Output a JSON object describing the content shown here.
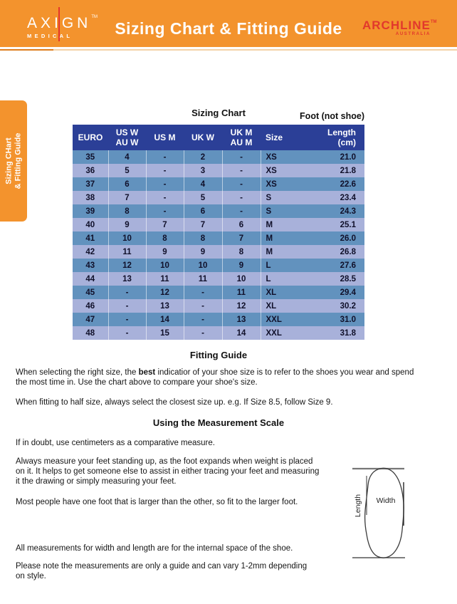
{
  "colors": {
    "orange": "#F3932D",
    "brand_red": "#E2382C",
    "table_header_bg": "#2B3F97",
    "row_odd": "#6292BE",
    "row_even": "#A8B1DA"
  },
  "header": {
    "title": "Sizing Chart & Fitting Guide",
    "axign": {
      "name": "AXIGN",
      "tm": "TM",
      "sub": "MEDICAL"
    },
    "archline": {
      "name": "ARCHLINE",
      "tm": "TM",
      "sub": "AUSTRALIA"
    }
  },
  "side_tab": {
    "line1": "Sizing CHart",
    "line2": "& Fitting Guide"
  },
  "sizing_chart": {
    "title": "Sizing Chart",
    "foot_note": "Foot (not shoe)",
    "columns": [
      {
        "line1": "EURO",
        "line2": ""
      },
      {
        "line1": "US W",
        "line2": "AU W"
      },
      {
        "line1": "US M",
        "line2": ""
      },
      {
        "line1": "UK W",
        "line2": ""
      },
      {
        "line1": "UK M",
        "line2": "AU M"
      },
      {
        "line1": "Size",
        "line2": ""
      },
      {
        "line1": "Length",
        "line2": "(cm)"
      }
    ],
    "rows": [
      [
        "35",
        "4",
        "-",
        "2",
        "-",
        "XS",
        "21.0"
      ],
      [
        "36",
        "5",
        "-",
        "3",
        "-",
        "XS",
        "21.8"
      ],
      [
        "37",
        "6",
        "-",
        "4",
        "-",
        "XS",
        "22.6"
      ],
      [
        "38",
        "7",
        "-",
        "5",
        "-",
        "S",
        "23.4"
      ],
      [
        "39",
        "8",
        "-",
        "6",
        "-",
        "S",
        "24.3"
      ],
      [
        "40",
        "9",
        "7",
        "7",
        "6",
        "M",
        "25.1"
      ],
      [
        "41",
        "10",
        "8",
        "8",
        "7",
        "M",
        "26.0"
      ],
      [
        "42",
        "11",
        "9",
        "9",
        "8",
        "M",
        "26.8"
      ],
      [
        "43",
        "12",
        "10",
        "10",
        "9",
        "L",
        "27.6"
      ],
      [
        "44",
        "13",
        "11",
        "11",
        "10",
        "L",
        "28.5"
      ],
      [
        "45",
        "-",
        "12",
        "-",
        "11",
        "XL",
        "29.4"
      ],
      [
        "46",
        "-",
        "13",
        "-",
        "12",
        "XL",
        "30.2"
      ],
      [
        "47",
        "-",
        "14",
        "-",
        "13",
        "XXL",
        "31.0"
      ],
      [
        "48",
        "-",
        "15",
        "-",
        "14",
        "XXL",
        "31.8"
      ]
    ]
  },
  "fitting_guide": {
    "title": "Fitting Guide",
    "p1_before": "When selecting the right size, the ",
    "p1_bold": "best",
    "p1_after": " indicatior of your shoe size is to refer to the shoes you wear and spend\nthe most time in. Use the chart above to compare your shoe's size.",
    "p2": "When fitting to half size, always select the closest size up. e.g. If Size 8.5, follow Size 9."
  },
  "measurement_scale": {
    "title": "Using the Measurement Scale",
    "p1": "If in doubt, use centimeters as a comparative measure.",
    "p2": "Always measure your feet standing up, as the foot expands when weight is placed\non it. It helps to get someone else to assist in either tracing your feet and measuring\nit the drawing or simply measuring your feet.",
    "p3": "Most people have one foot that is larger than the other, so fit to the larger foot.",
    "p4": "All measurements for width and length are for the internal space of the shoe.",
    "p5": "Please note the measurements are only a guide and can vary 1-2mm depending\non style."
  },
  "diagram": {
    "width_label": "Width",
    "length_label": "Length"
  }
}
